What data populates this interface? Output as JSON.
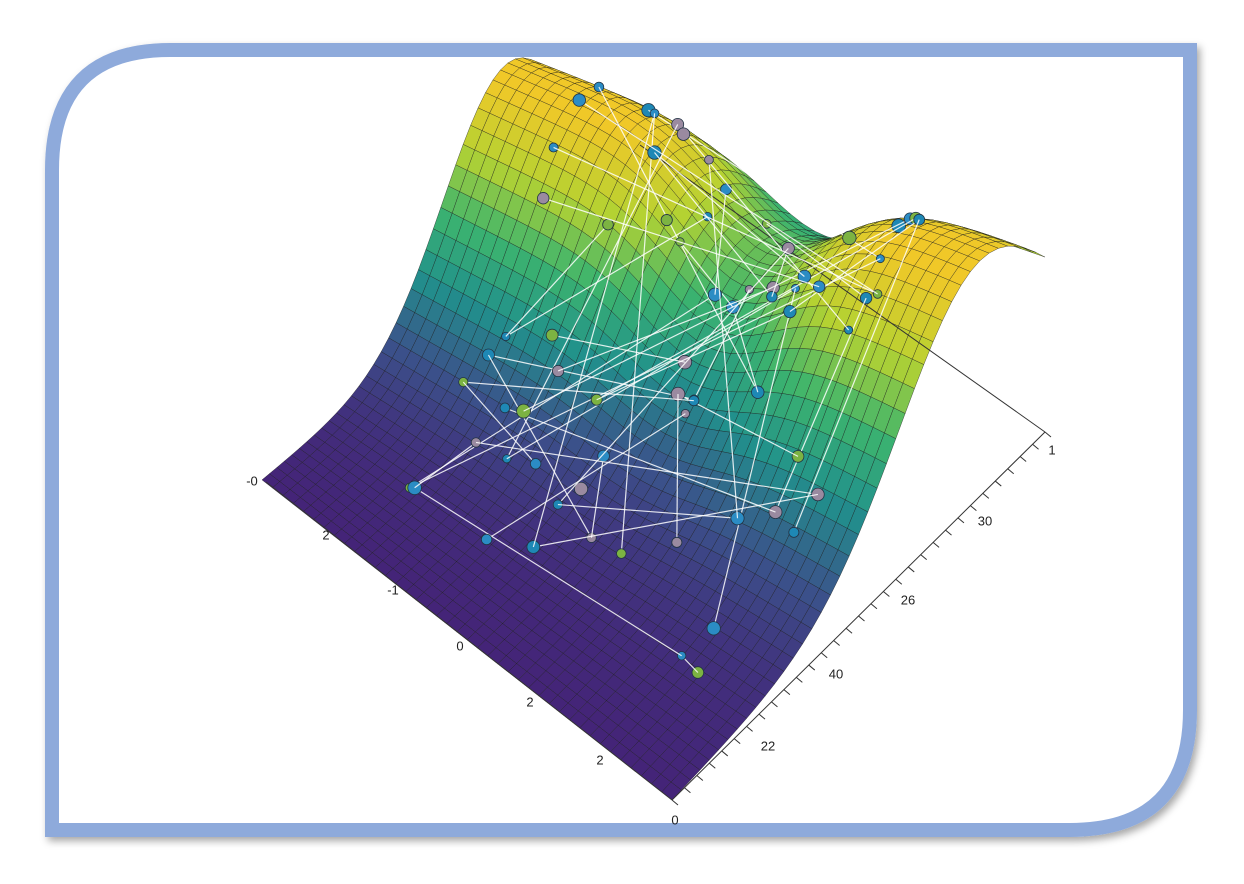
{
  "left_axis_labels": [
    "-0",
    "2",
    "-1",
    "0",
    "2",
    "2",
    "0"
  ],
  "right_axis_labels": [
    "1",
    "30",
    "26",
    "40",
    "22"
  ]
}
